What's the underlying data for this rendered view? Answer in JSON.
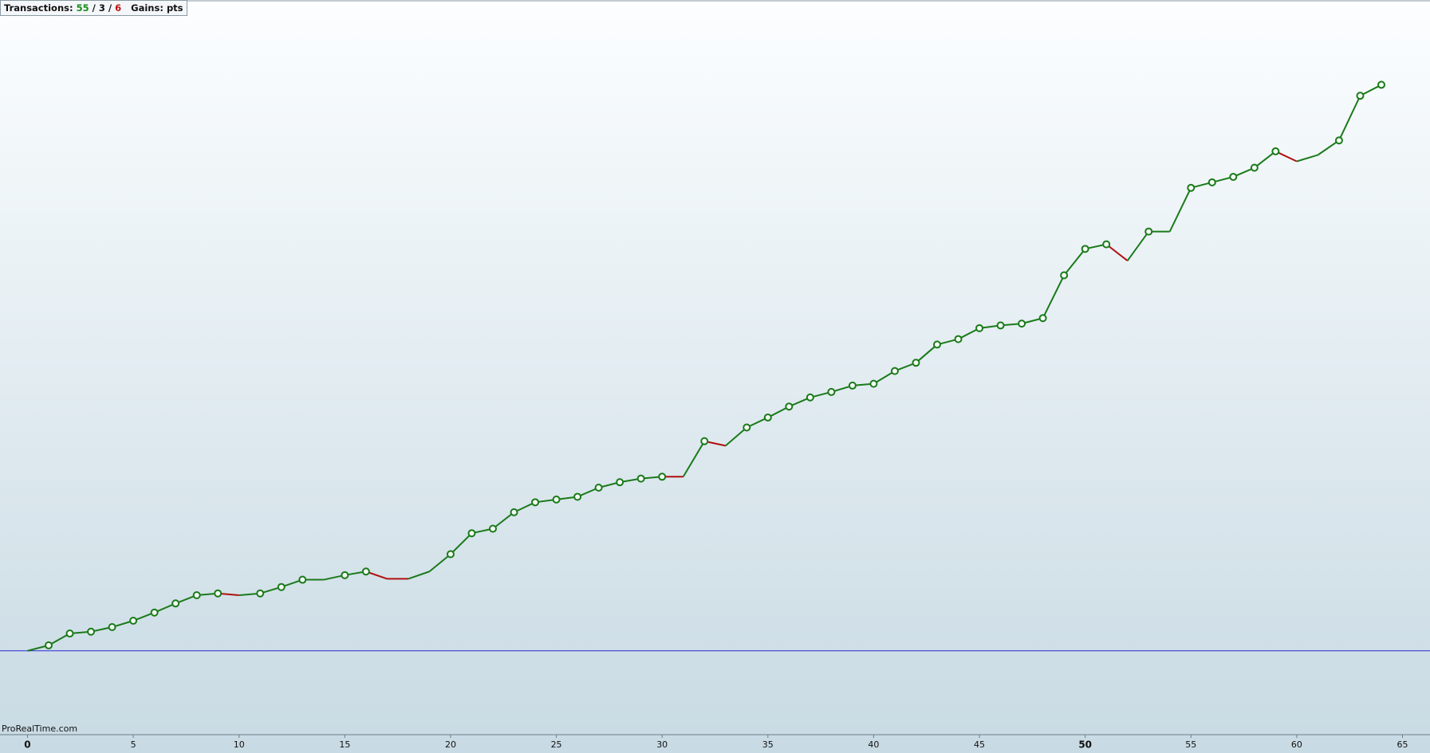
{
  "chart_data": {
    "type": "line",
    "header": {
      "label": "Transactions:",
      "wins": 55,
      "separator": "/",
      "neutral": 3,
      "losses": 6,
      "gains_label": "Gains:",
      "gains_unit": "pts"
    },
    "watermark": "ProRealTime.com",
    "x": [
      0,
      1,
      2,
      3,
      4,
      5,
      6,
      7,
      8,
      9,
      10,
      11,
      12,
      13,
      14,
      15,
      16,
      17,
      18,
      19,
      20,
      21,
      22,
      23,
      24,
      25,
      26,
      27,
      28,
      29,
      30,
      31,
      32,
      33,
      34,
      35,
      36,
      37,
      38,
      39,
      40,
      41,
      42,
      43,
      44,
      45,
      46,
      47,
      48,
      49,
      50,
      51,
      52,
      53,
      54,
      55,
      56,
      57,
      58,
      59,
      60,
      61,
      62,
      63,
      64
    ],
    "series": [
      {
        "name": "Gains",
        "color": "#1a7a1a",
        "loss_color": "#b01010",
        "values": [
          0,
          6,
          19,
          21,
          26,
          33,
          42,
          52,
          61,
          63,
          61,
          63,
          70,
          78,
          78,
          83,
          87,
          79,
          79,
          87,
          106,
          129,
          134,
          152,
          163,
          166,
          169,
          179,
          185,
          189,
          191,
          191,
          230,
          225,
          245,
          256,
          268,
          278,
          284,
          291,
          293,
          307,
          316,
          336,
          342,
          354,
          357,
          359,
          365,
          412,
          441,
          446,
          428,
          460,
          460,
          508,
          514,
          520,
          530,
          548,
          537,
          544,
          560,
          609,
          621
        ],
        "loss_segments": [
          10,
          17,
          18,
          31,
          33,
          52,
          60
        ],
        "markers": [
          false,
          true,
          true,
          true,
          true,
          true,
          true,
          true,
          true,
          true,
          false,
          true,
          true,
          true,
          false,
          true,
          true,
          false,
          false,
          false,
          true,
          true,
          true,
          true,
          true,
          true,
          true,
          true,
          true,
          true,
          true,
          false,
          true,
          false,
          true,
          true,
          true,
          true,
          true,
          true,
          true,
          true,
          true,
          true,
          true,
          true,
          true,
          true,
          true,
          true,
          true,
          true,
          false,
          true,
          false,
          true,
          true,
          true,
          true,
          true,
          false,
          false,
          true,
          true,
          true
        ]
      }
    ],
    "baseline": 0,
    "baseline_color": "#2a2ad0",
    "xlim": [
      -1.3,
      66.3
    ],
    "ylim": [
      -92,
      697
    ],
    "xticks": [
      0,
      5,
      10,
      15,
      20,
      25,
      30,
      35,
      40,
      45,
      50,
      55,
      60,
      65
    ],
    "xticks_bold": [
      0,
      50
    ]
  }
}
